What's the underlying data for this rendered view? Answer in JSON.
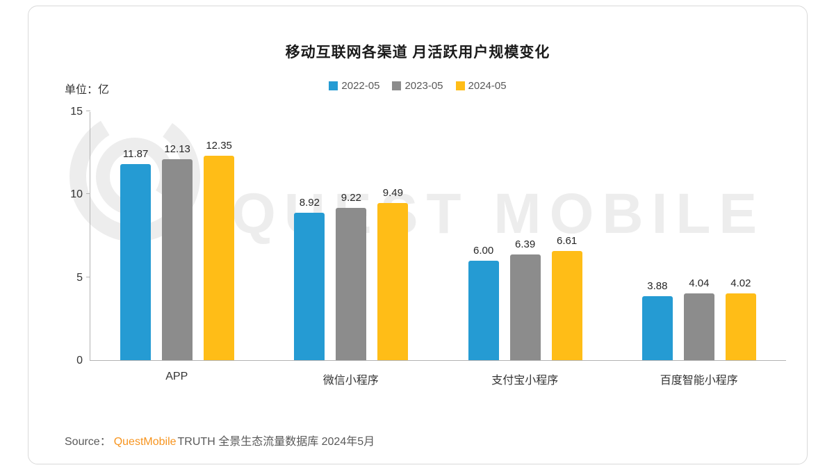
{
  "chart": {
    "title": "移动互联网各渠道 月活跃用户规模变化",
    "unit_label": "单位：亿",
    "watermark": "QUEST MOBILE",
    "source": {
      "prefix": "Source：",
      "brand": "QuestMobile",
      "suffix": "TRUTH 全景生态流量数据库 2024年5月"
    }
  },
  "chart_data": {
    "type": "bar",
    "title": "移动互联网各渠道 月活跃用户规模变化",
    "ylabel": "单位：亿",
    "categories": [
      "APP",
      "微信小程序",
      "支付宝小程序",
      "百度智能小程序"
    ],
    "series": [
      {
        "name": "2022-05",
        "color": "#259bd3",
        "values": [
          11.87,
          8.92,
          6.0,
          3.88
        ]
      },
      {
        "name": "2023-05",
        "color": "#8c8c8c",
        "values": [
          12.13,
          9.22,
          6.39,
          4.04
        ]
      },
      {
        "name": "2024-05",
        "color": "#ffbd17",
        "values": [
          12.35,
          9.49,
          6.61,
          4.02
        ]
      }
    ],
    "ylim": [
      0,
      15
    ],
    "yticks": [
      0,
      5,
      10,
      15
    ],
    "grid": false,
    "legend_position": "top",
    "value_labels_decimals": 2
  }
}
